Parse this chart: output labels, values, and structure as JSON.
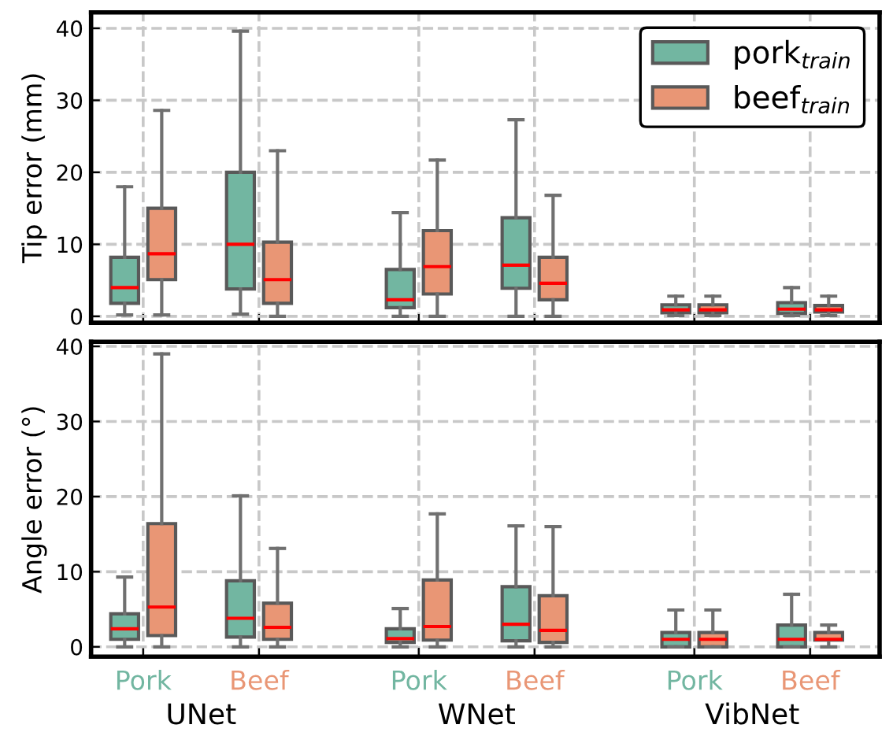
{
  "chart_data": [
    {
      "type": "box",
      "ylabel": "Tip error (mm)",
      "categories": [
        null,
        null,
        null,
        null,
        null,
        null
      ],
      "ylim": [
        -0.9,
        42.2
      ],
      "yticks": [
        0,
        10,
        20,
        30,
        40
      ],
      "grid": true,
      "legend": "top right",
      "tick_labels": "y",
      "series": [
        {
          "name": "pork$_{train}$",
          "color": "#72b6a1",
          "boxes": [
            {
              "low": 0.2,
              "q1": 1.8,
              "median": 4.0,
              "q3": 8.2,
              "high": 18.0
            },
            {
              "low": 0.3,
              "q1": 3.8,
              "median": 10.0,
              "q3": 20.0,
              "high": 39.6
            },
            {
              "low": 0,
              "q1": 1.2,
              "median": 2.3,
              "q3": 6.5,
              "high": 14.4
            },
            {
              "low": 0,
              "q1": 3.9,
              "median": 7.1,
              "q3": 13.7,
              "high": 27.3
            },
            {
              "low": 0.1,
              "q1": 0.5,
              "median": 0.9,
              "q3": 1.6,
              "high": 2.8
            },
            {
              "low": 0.1,
              "q1": 0.4,
              "median": 1.0,
              "q3": 1.9,
              "high": 4.0
            }
          ]
        },
        {
          "name": "beef$_{train}$",
          "color": "#e99675",
          "boxes": [
            {
              "low": 0.2,
              "q1": 5.1,
              "median": 8.7,
              "q3": 15.0,
              "high": 28.6
            },
            {
              "low": 0,
              "q1": 1.8,
              "median": 5.1,
              "q3": 10.3,
              "high": 23.0
            },
            {
              "low": 0,
              "q1": 3.1,
              "median": 6.9,
              "q3": 11.9,
              "high": 21.7
            },
            {
              "low": 0,
              "q1": 2.3,
              "median": 4.6,
              "q3": 8.2,
              "high": 16.8
            },
            {
              "low": 0.1,
              "q1": 0.5,
              "median": 0.9,
              "q3": 1.6,
              "high": 2.8
            },
            {
              "low": 0.1,
              "q1": 0.6,
              "median": 0.9,
              "q3": 1.5,
              "high": 2.8
            }
          ]
        }
      ]
    },
    {
      "type": "box",
      "ylabel": "Angle error (°)",
      "categories": [
        "Pork",
        "Beef",
        "Pork",
        "Beef",
        "Pork",
        "Beef"
      ],
      "ylim": [
        -1.3,
        40.6
      ],
      "yticks": [
        0,
        10,
        20,
        30,
        40
      ],
      "grid": true,
      "annotations": [
        "UNet",
        "WNet",
        "VibNet"
      ],
      "series": [
        {
          "color": "#72b6a1",
          "boxes": [
            {
              "low": 0,
              "q1": 1.0,
              "median": 2.4,
              "q3": 4.4,
              "high": 9.3
            },
            {
              "low": 0,
              "q1": 1.3,
              "median": 3.8,
              "q3": 8.8,
              "high": 20.1
            },
            {
              "low": 0,
              "q1": 0.6,
              "median": 1.1,
              "q3": 2.4,
              "high": 5.1
            },
            {
              "low": 0,
              "q1": 0.8,
              "median": 3.0,
              "q3": 8.0,
              "high": 16.1
            },
            {
              "low": 0,
              "q1": 0,
              "median": 1.0,
              "q3": 1.9,
              "high": 4.9
            },
            {
              "low": 0,
              "q1": 0,
              "median": 1.0,
              "q3": 2.9,
              "high": 7.0
            }
          ]
        },
        {
          "color": "#e99675",
          "boxes": [
            {
              "low": 0,
              "q1": 1.5,
              "median": 5.3,
              "q3": 16.4,
              "high": 39.0
            },
            {
              "low": 0,
              "q1": 1.0,
              "median": 2.6,
              "q3": 5.8,
              "high": 13.1
            },
            {
              "low": 0,
              "q1": 0.9,
              "median": 2.7,
              "q3": 8.9,
              "high": 17.7
            },
            {
              "low": 0,
              "q1": 0.6,
              "median": 2.2,
              "q3": 6.8,
              "high": 16.0
            },
            {
              "low": 0,
              "q1": 0,
              "median": 1.0,
              "q3": 1.9,
              "high": 4.9
            },
            {
              "low": 0,
              "q1": 0.9,
              "median": 1.0,
              "q3": 1.9,
              "high": 2.9
            }
          ]
        }
      ]
    }
  ]
}
